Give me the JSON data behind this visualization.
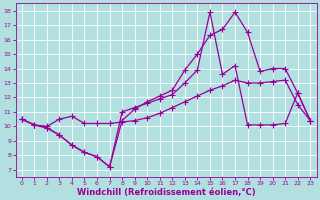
{
  "bg_color": "#b2e0e0",
  "line_color": "#990099",
  "marker": "+",
  "markersize": 4,
  "linewidth": 0.9,
  "xlabel": "Windchill (Refroidissement éolien,°C)",
  "xlabel_fontsize": 6.0,
  "xlim": [
    -0.5,
    23.5
  ],
  "ylim": [
    6.5,
    18.5
  ],
  "xticks": [
    0,
    1,
    2,
    3,
    4,
    5,
    6,
    7,
    8,
    9,
    10,
    11,
    12,
    13,
    14,
    15,
    16,
    17,
    18,
    19,
    20,
    21,
    22,
    23
  ],
  "yticks": [
    7,
    8,
    9,
    10,
    11,
    12,
    13,
    14,
    15,
    16,
    17,
    18
  ],
  "grid_color": "#ffffff",
  "series1_x": [
    0,
    1,
    2,
    3,
    4,
    5,
    6,
    7,
    8,
    9,
    10,
    11,
    12,
    13,
    14,
    15,
    16,
    17,
    18,
    19,
    20,
    21,
    22,
    23
  ],
  "series1_y": [
    10.5,
    10.1,
    9.9,
    9.4,
    8.7,
    8.2,
    7.9,
    7.2,
    11.0,
    11.3,
    11.6,
    11.9,
    12.2,
    13.0,
    13.9,
    17.9,
    13.6,
    14.2,
    10.1,
    10.1,
    10.1,
    10.2,
    12.3,
    10.4
  ],
  "series2_x": [
    0,
    1,
    2,
    3,
    4,
    5,
    6,
    7,
    8,
    9,
    10,
    11,
    12,
    13,
    14,
    15,
    16,
    17,
    18,
    19,
    20,
    21,
    22,
    23
  ],
  "series2_y": [
    10.5,
    10.1,
    9.9,
    9.4,
    8.7,
    8.2,
    7.9,
    7.2,
    10.4,
    11.2,
    11.7,
    12.1,
    12.5,
    13.9,
    15.0,
    16.3,
    16.7,
    17.9,
    16.5,
    13.8,
    14.0,
    14.0,
    12.3,
    10.4
  ],
  "series3_x": [
    0,
    1,
    2,
    3,
    4,
    5,
    6,
    7,
    8,
    9,
    10,
    11,
    12,
    13,
    14,
    15,
    16,
    17,
    18,
    19,
    20,
    21,
    22,
    23
  ],
  "series3_y": [
    10.5,
    10.1,
    10.0,
    10.5,
    10.7,
    10.2,
    10.2,
    10.2,
    10.3,
    10.4,
    10.6,
    10.9,
    11.3,
    11.7,
    12.1,
    12.5,
    12.8,
    13.2,
    13.0,
    13.0,
    13.1,
    13.2,
    11.5,
    10.4
  ]
}
